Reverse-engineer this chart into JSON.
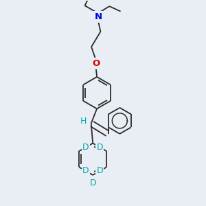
{
  "bg_color": "#e8eef4",
  "bond_color": "#2a2a2a",
  "N_color": "#0000ee",
  "O_color": "#dd0000",
  "D_color": "#00aaaa",
  "H_color": "#00aaaa",
  "bond_lw": 1.3,
  "figsize": [
    3.0,
    3.0
  ],
  "dpi": 100,
  "xlim": [
    0,
    10
  ],
  "ylim": [
    0,
    10
  ]
}
